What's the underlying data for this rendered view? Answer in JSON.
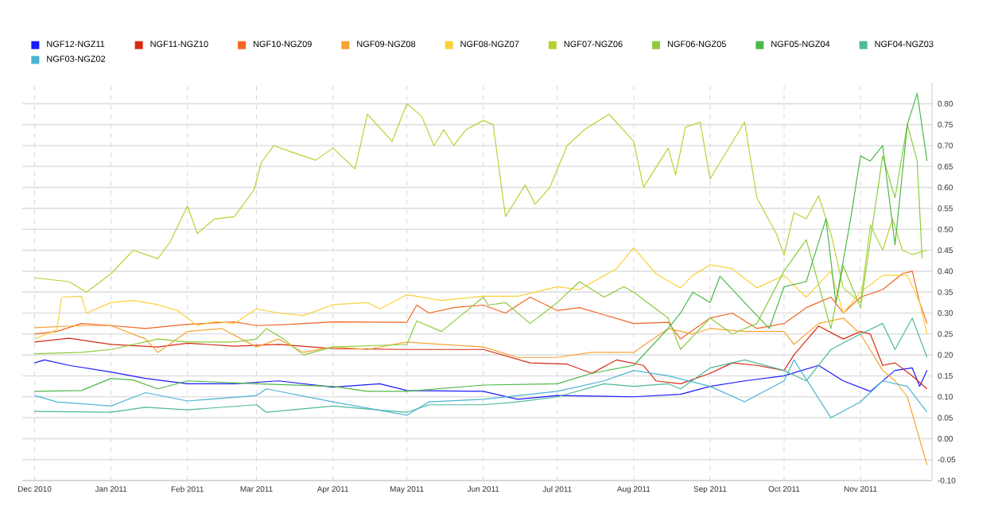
{
  "chart_data": {
    "type": "line",
    "legend": "top",
    "grid": true,
    "xlim": [
      "2010-11-26",
      "2011-11-30"
    ],
    "ylim": [
      -0.1,
      0.85
    ],
    "xticks": [
      {
        "value": "2010-12-01",
        "label": "Dec 2010"
      },
      {
        "value": "2011-01-01",
        "label": "Jan 2011"
      },
      {
        "value": "2011-02-01",
        "label": "Feb 2011"
      },
      {
        "value": "2011-03-01",
        "label": "Mar 2011"
      },
      {
        "value": "2011-04-01",
        "label": "Apr 2011"
      },
      {
        "value": "2011-05-01",
        "label": "May 2011"
      },
      {
        "value": "2011-06-01",
        "label": "Jun 2011"
      },
      {
        "value": "2011-07-01",
        "label": "Jul 2011"
      },
      {
        "value": "2011-08-01",
        "label": "Aug 2011"
      },
      {
        "value": "2011-09-01",
        "label": "Sep 2011"
      },
      {
        "value": "2011-10-01",
        "label": "Oct 2011"
      },
      {
        "value": "2011-11-01",
        "label": "Nov 2011"
      }
    ],
    "yticks": [
      {
        "value": -0.1,
        "label": "-0.10"
      },
      {
        "value": -0.05,
        "label": "-0.05"
      },
      {
        "value": 0,
        "label": "0.00"
      },
      {
        "value": 0.05,
        "label": "0.05"
      },
      {
        "value": 0.1,
        "label": "0.10"
      },
      {
        "value": 0.15,
        "label": "0.15"
      },
      {
        "value": 0.2,
        "label": "0.20"
      },
      {
        "value": 0.25,
        "label": "0.25"
      },
      {
        "value": 0.3,
        "label": "0.30"
      },
      {
        "value": 0.35,
        "label": "0.35"
      },
      {
        "value": 0.4,
        "label": "0.40"
      },
      {
        "value": 0.45,
        "label": "0.45"
      },
      {
        "value": 0.5,
        "label": "0.50"
      },
      {
        "value": 0.55,
        "label": "0.55"
      },
      {
        "value": 0.6,
        "label": "0.60"
      },
      {
        "value": 0.65,
        "label": "0.65"
      },
      {
        "value": 0.7,
        "label": "0.70"
      },
      {
        "value": 0.75,
        "label": "0.75"
      },
      {
        "value": 0.8,
        "label": "0.80"
      }
    ],
    "series": [
      {
        "name": "NGF12-NGZ11",
        "color": "#1a1aff",
        "x": [
          "2010-12-01",
          "2010-12-05",
          "2010-12-15",
          "2011-01-01",
          "2011-01-15",
          "2011-02-01",
          "2011-02-20",
          "2011-03-10",
          "2011-04-01",
          "2011-04-20",
          "2011-05-01",
          "2011-06-01",
          "2011-06-15",
          "2011-07-01",
          "2011-08-01",
          "2011-08-20",
          "2011-09-01",
          "2011-09-15",
          "2011-10-01",
          "2011-10-15",
          "2011-10-25",
          "2011-11-05",
          "2011-11-15",
          "2011-11-22",
          "2011-11-25",
          "2011-11-28"
        ],
        "values": [
          0.181,
          0.188,
          0.175,
          0.159,
          0.144,
          0.131,
          0.131,
          0.138,
          0.123,
          0.131,
          0.115,
          0.113,
          0.094,
          0.103,
          0.1,
          0.106,
          0.125,
          0.138,
          0.15,
          0.175,
          0.138,
          0.113,
          0.163,
          0.169,
          0.125,
          0.163
        ]
      },
      {
        "name": "NGF11-NGZ10",
        "color": "#d62a12",
        "x": [
          "2010-12-01",
          "2010-12-15",
          "2011-01-01",
          "2011-01-20",
          "2011-02-01",
          "2011-02-20",
          "2011-03-10",
          "2011-04-01",
          "2011-05-01",
          "2011-06-01",
          "2011-06-20",
          "2011-07-05",
          "2011-07-15",
          "2011-07-25",
          "2011-08-05",
          "2011-08-10",
          "2011-08-20",
          "2011-09-01",
          "2011-09-10",
          "2011-09-20",
          "2011-10-01",
          "2011-10-05",
          "2011-10-15",
          "2011-10-25",
          "2011-11-01",
          "2011-11-05",
          "2011-11-10",
          "2011-11-15",
          "2011-11-22",
          "2011-11-28"
        ],
        "values": [
          0.231,
          0.24,
          0.225,
          0.219,
          0.228,
          0.221,
          0.225,
          0.215,
          0.213,
          0.213,
          0.181,
          0.178,
          0.156,
          0.188,
          0.175,
          0.138,
          0.131,
          0.156,
          0.181,
          0.175,
          0.163,
          0.2,
          0.269,
          0.238,
          0.256,
          0.25,
          0.175,
          0.181,
          0.15,
          0.119
        ]
      },
      {
        "name": "NGF10-NGZ09",
        "color": "#f26522",
        "x": [
          "2010-12-01",
          "2010-12-10",
          "2010-12-20",
          "2011-01-01",
          "2011-01-15",
          "2011-02-01",
          "2011-02-20",
          "2011-03-01",
          "2011-03-15",
          "2011-04-01",
          "2011-05-01",
          "2011-05-05",
          "2011-05-10",
          "2011-05-20",
          "2011-06-01",
          "2011-06-10",
          "2011-06-20",
          "2011-07-01",
          "2011-07-10",
          "2011-08-01",
          "2011-08-15",
          "2011-08-20",
          "2011-09-01",
          "2011-09-10",
          "2011-09-20",
          "2011-10-01",
          "2011-10-10",
          "2011-10-20",
          "2011-10-25",
          "2011-11-01",
          "2011-11-10",
          "2011-11-18",
          "2011-11-22",
          "2011-11-25",
          "2011-11-28"
        ],
        "values": [
          0.25,
          0.256,
          0.275,
          0.27,
          0.263,
          0.273,
          0.279,
          0.27,
          0.273,
          0.279,
          0.278,
          0.319,
          0.3,
          0.313,
          0.319,
          0.3,
          0.338,
          0.306,
          0.313,
          0.275,
          0.278,
          0.238,
          0.288,
          0.3,
          0.263,
          0.275,
          0.313,
          0.338,
          0.3,
          0.338,
          0.356,
          0.394,
          0.4,
          0.325,
          0.275
        ]
      },
      {
        "name": "NGF09-NGZ08",
        "color": "#f5a431",
        "x": [
          "2010-12-01",
          "2010-12-20",
          "2011-01-01",
          "2011-01-15",
          "2011-01-20",
          "2011-02-01",
          "2011-02-15",
          "2011-03-01",
          "2011-03-10",
          "2011-03-20",
          "2011-04-01",
          "2011-04-15",
          "2011-05-01",
          "2011-05-15",
          "2011-06-01",
          "2011-06-15",
          "2011-07-01",
          "2011-07-15",
          "2011-08-01",
          "2011-08-15",
          "2011-08-25",
          "2011-09-01",
          "2011-09-15",
          "2011-10-01",
          "2011-10-05",
          "2011-10-15",
          "2011-10-25",
          "2011-11-01",
          "2011-11-10",
          "2011-11-15",
          "2011-11-20",
          "2011-11-28"
        ],
        "values": [
          0.265,
          0.27,
          0.27,
          0.238,
          0.206,
          0.256,
          0.263,
          0.219,
          0.238,
          0.206,
          0.219,
          0.213,
          0.231,
          0.225,
          0.219,
          0.194,
          0.194,
          0.206,
          0.206,
          0.263,
          0.25,
          0.263,
          0.256,
          0.256,
          0.225,
          0.275,
          0.288,
          0.25,
          0.163,
          0.138,
          0.1,
          -0.063
        ]
      },
      {
        "name": "NGF08-NGZ07",
        "color": "#f9d13b",
        "x": [
          "2010-12-01",
          "2010-12-10",
          "2010-12-12",
          "2010-12-20",
          "2010-12-22",
          "2011-01-01",
          "2011-01-10",
          "2011-01-20",
          "2011-01-28",
          "2011-02-05",
          "2011-02-12",
          "2011-02-20",
          "2011-03-01",
          "2011-03-10",
          "2011-03-20",
          "2011-04-01",
          "2011-04-15",
          "2011-04-20",
          "2011-05-01",
          "2011-05-15",
          "2011-06-01",
          "2011-06-15",
          "2011-07-01",
          "2011-07-10",
          "2011-07-25",
          "2011-08-01",
          "2011-08-10",
          "2011-08-20",
          "2011-08-25",
          "2011-09-01",
          "2011-09-10",
          "2011-09-20",
          "2011-10-01",
          "2011-10-10",
          "2011-10-20",
          "2011-10-25",
          "2011-11-01",
          "2011-11-10",
          "2011-11-20",
          "2011-11-25",
          "2011-11-28"
        ],
        "values": [
          0.238,
          0.26,
          0.338,
          0.34,
          0.3,
          0.325,
          0.33,
          0.32,
          0.306,
          0.27,
          0.28,
          0.275,
          0.31,
          0.3,
          0.294,
          0.32,
          0.325,
          0.31,
          0.344,
          0.33,
          0.34,
          0.34,
          0.363,
          0.356,
          0.406,
          0.456,
          0.394,
          0.36,
          0.39,
          0.415,
          0.406,
          0.36,
          0.39,
          0.338,
          0.4,
          0.3,
          0.35,
          0.39,
          0.39,
          0.325,
          0.25
        ]
      },
      {
        "name": "NGF07-NGZ06",
        "color": "#b5d334",
        "x": [
          "2010-12-01",
          "2010-12-15",
          "2010-12-22",
          "2011-01-01",
          "2011-01-10",
          "2011-01-20",
          "2011-01-25",
          "2011-02-01",
          "2011-02-05",
          "2011-02-12",
          "2011-02-20",
          "2011-02-28",
          "2011-03-03",
          "2011-03-08",
          "2011-03-15",
          "2011-03-25",
          "2011-04-01",
          "2011-04-10",
          "2011-04-15",
          "2011-04-25",
          "2011-05-01",
          "2011-05-07",
          "2011-05-12",
          "2011-05-16",
          "2011-05-20",
          "2011-05-25",
          "2011-06-01",
          "2011-06-05",
          "2011-06-10",
          "2011-06-18",
          "2011-06-22",
          "2011-06-28",
          "2011-07-05",
          "2011-07-12",
          "2011-07-22",
          "2011-08-01",
          "2011-08-05",
          "2011-08-15",
          "2011-08-18",
          "2011-08-22",
          "2011-08-28",
          "2011-09-01",
          "2011-09-05",
          "2011-09-15",
          "2011-09-20",
          "2011-09-28",
          "2011-10-01",
          "2011-10-05",
          "2011-10-10",
          "2011-10-15",
          "2011-10-20",
          "2011-10-25",
          "2011-11-01",
          "2011-11-05",
          "2011-11-10",
          "2011-11-14",
          "2011-11-18",
          "2011-11-22",
          "2011-11-28"
        ],
        "values": [
          0.384,
          0.375,
          0.35,
          0.394,
          0.45,
          0.43,
          0.47,
          0.556,
          0.49,
          0.525,
          0.53,
          0.594,
          0.66,
          0.7,
          0.685,
          0.665,
          0.694,
          0.644,
          0.775,
          0.71,
          0.8,
          0.77,
          0.7,
          0.738,
          0.7,
          0.738,
          0.76,
          0.75,
          0.53,
          0.606,
          0.56,
          0.6,
          0.7,
          0.738,
          0.775,
          0.71,
          0.6,
          0.694,
          0.63,
          0.744,
          0.756,
          0.62,
          0.66,
          0.756,
          0.575,
          0.488,
          0.438,
          0.54,
          0.525,
          0.58,
          0.49,
          0.36,
          0.325,
          0.51,
          0.45,
          0.525,
          0.45,
          0.44,
          0.45
        ]
      },
      {
        "name": "NGF06-NGZ05",
        "color": "#8ccc3c",
        "x": [
          "2010-12-01",
          "2010-12-20",
          "2011-01-01",
          "2011-01-20",
          "2011-02-01",
          "2011-02-20",
          "2011-03-01",
          "2011-03-05",
          "2011-03-12",
          "2011-03-20",
          "2011-04-01",
          "2011-05-01",
          "2011-05-05",
          "2011-05-15",
          "2011-06-01",
          "2011-06-03",
          "2011-06-10",
          "2011-06-20",
          "2011-07-01",
          "2011-07-10",
          "2011-07-20",
          "2011-07-28",
          "2011-08-01",
          "2011-08-15",
          "2011-08-20",
          "2011-09-01",
          "2011-09-10",
          "2011-09-20",
          "2011-10-01",
          "2011-10-10",
          "2011-10-20",
          "2011-10-25",
          "2011-11-01",
          "2011-11-05",
          "2011-11-10",
          "2011-11-15",
          "2011-11-20",
          "2011-11-24",
          "2011-11-26"
        ],
        "values": [
          0.203,
          0.206,
          0.213,
          0.238,
          0.231,
          0.231,
          0.238,
          0.263,
          0.238,
          0.2,
          0.219,
          0.225,
          0.281,
          0.256,
          0.338,
          0.319,
          0.325,
          0.275,
          0.325,
          0.375,
          0.338,
          0.363,
          0.35,
          0.288,
          0.213,
          0.288,
          0.25,
          0.275,
          0.4,
          0.475,
          0.263,
          0.413,
          0.313,
          0.475,
          0.675,
          0.575,
          0.75,
          0.663,
          0.43
        ]
      },
      {
        "name": "NGF05-NGZ04",
        "color": "#4cb847",
        "x": [
          "2010-12-01",
          "2010-12-20",
          "2011-01-01",
          "2011-01-10",
          "2011-01-20",
          "2011-02-01",
          "2011-03-01",
          "2011-04-01",
          "2011-04-15",
          "2011-05-01",
          "2011-06-01",
          "2011-07-01",
          "2011-07-15",
          "2011-08-01",
          "2011-08-15",
          "2011-08-20",
          "2011-08-25",
          "2011-09-01",
          "2011-09-05",
          "2011-09-15",
          "2011-09-25",
          "2011-10-01",
          "2011-10-10",
          "2011-10-18",
          "2011-10-22",
          "2011-10-28",
          "2011-11-01",
          "2011-11-05",
          "2011-11-10",
          "2011-11-15",
          "2011-11-20",
          "2011-11-24",
          "2011-11-28"
        ],
        "values": [
          0.113,
          0.115,
          0.144,
          0.14,
          0.119,
          0.138,
          0.131,
          0.125,
          0.113,
          0.113,
          0.128,
          0.131,
          0.156,
          0.175,
          0.263,
          0.3,
          0.35,
          0.325,
          0.388,
          0.325,
          0.263,
          0.363,
          0.375,
          0.525,
          0.325,
          0.525,
          0.675,
          0.663,
          0.7,
          0.463,
          0.75,
          0.825,
          0.663
        ]
      },
      {
        "name": "NGF04-NGZ03",
        "color": "#4db89a",
        "x": [
          "2010-12-01",
          "2011-01-01",
          "2011-01-15",
          "2011-02-01",
          "2011-03-01",
          "2011-03-05",
          "2011-04-01",
          "2011-05-01",
          "2011-05-10",
          "2011-06-01",
          "2011-06-15",
          "2011-07-01",
          "2011-07-20",
          "2011-08-01",
          "2011-08-15",
          "2011-08-20",
          "2011-09-01",
          "2011-09-15",
          "2011-10-01",
          "2011-10-10",
          "2011-10-20",
          "2011-11-01",
          "2011-11-10",
          "2011-11-15",
          "2011-11-22",
          "2011-11-28"
        ],
        "values": [
          0.065,
          0.063,
          0.075,
          0.069,
          0.081,
          0.063,
          0.078,
          0.063,
          0.081,
          0.081,
          0.088,
          0.1,
          0.131,
          0.125,
          0.131,
          0.119,
          0.169,
          0.188,
          0.163,
          0.138,
          0.213,
          0.25,
          0.275,
          0.213,
          0.288,
          0.194
        ]
      },
      {
        "name": "NGF03-NGZ02",
        "color": "#4ab3d3",
        "x": [
          "2010-12-01",
          "2010-12-10",
          "2011-01-01",
          "2011-01-15",
          "2011-02-01",
          "2011-03-01",
          "2011-03-05",
          "2011-04-01",
          "2011-05-01",
          "2011-05-10",
          "2011-06-01",
          "2011-07-01",
          "2011-07-20",
          "2011-08-01",
          "2011-08-15",
          "2011-09-01",
          "2011-09-15",
          "2011-10-01",
          "2011-10-05",
          "2011-10-20",
          "2011-11-01",
          "2011-11-10",
          "2011-11-20",
          "2011-11-28"
        ],
        "values": [
          0.103,
          0.088,
          0.078,
          0.11,
          0.09,
          0.103,
          0.119,
          0.088,
          0.056,
          0.088,
          0.094,
          0.113,
          0.138,
          0.163,
          0.15,
          0.125,
          0.088,
          0.138,
          0.188,
          0.05,
          0.088,
          0.138,
          0.125,
          0.063
        ]
      }
    ]
  }
}
